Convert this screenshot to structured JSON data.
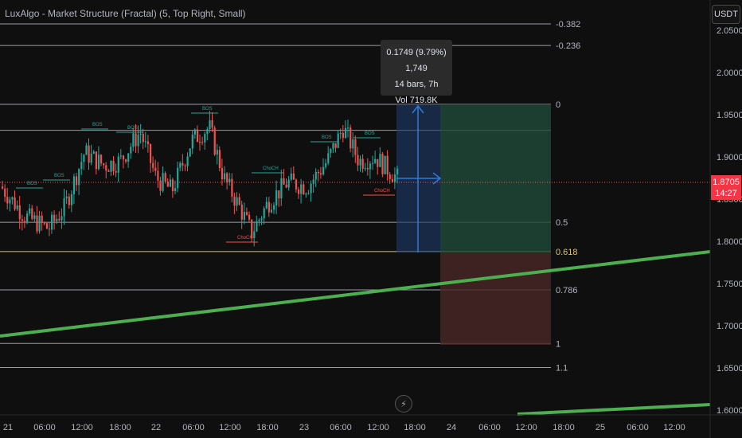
{
  "indicator_title": "LuxAlgo - Market Structure (Fractal) (5, Top Right, Small)",
  "currency_button": "USDT",
  "tooltip": {
    "line1": "0.1749 (9.79%) 1,749",
    "line2": "14 bars, 7h",
    "line3": "Vol 719.8K"
  },
  "last_price": {
    "value": "1.8705",
    "countdown": "14:27"
  },
  "colors": {
    "background": "#0f0f0f",
    "up": "#26a69a",
    "down": "#ef5350",
    "trendline": "#4caf50",
    "fib": "#d1d4dc",
    "fib_golden": "#e0c36b",
    "long_profit": "#1f4a3a",
    "long_loss": "#4a2626",
    "measure": "#1e3a6b"
  },
  "chart_data": {
    "type": "candlestick",
    "y_axis": {
      "ticks": [
        "2.0500",
        "2.0000",
        "1.9500",
        "1.9000",
        "1.8500",
        "1.8000",
        "1.7500",
        "1.7000",
        "1.6500",
        "1.6000"
      ],
      "range": [
        1.595,
        2.06
      ]
    },
    "x_axis": {
      "ticks": [
        "21",
        "06:00",
        "12:00",
        "18:00",
        "22",
        "06:00",
        "12:00",
        "18:00",
        "23",
        "06:00",
        "12:00",
        "18:00",
        "24",
        "06:00",
        "12:00",
        "18:00",
        "25",
        "06:00",
        "12:00"
      ]
    },
    "fib_levels": [
      {
        "label": "-0.382",
        "price": 2.0575
      },
      {
        "label": "-0.236",
        "price": 2.0319
      },
      {
        "label": "0",
        "price": 1.9623
      },
      {
        "label": "",
        "price": 1.9315
      },
      {
        "label": "0.5",
        "price": 1.8225
      },
      {
        "label": "0.618",
        "price": 1.7878
      },
      {
        "label": "0.786",
        "price": 1.7425
      },
      {
        "label": "1",
        "price": 1.679
      },
      {
        "label": "1.1",
        "price": 1.6505
      }
    ],
    "structure_labels": [
      {
        "text": "BOS",
        "kind": "bull"
      },
      {
        "text": "BOS",
        "kind": "bull"
      },
      {
        "text": "BOS",
        "kind": "bull"
      },
      {
        "text": "BOS",
        "kind": "bull"
      },
      {
        "text": "BOS",
        "kind": "bull"
      },
      {
        "text": "ChoCH",
        "kind": "bull"
      },
      {
        "text": "BOS",
        "kind": "bull"
      },
      {
        "text": "BOS",
        "kind": "bull"
      },
      {
        "text": "ChoCH",
        "kind": "bear"
      },
      {
        "text": "ChoCH",
        "kind": "bear"
      }
    ],
    "current_price": 1.8705
  }
}
